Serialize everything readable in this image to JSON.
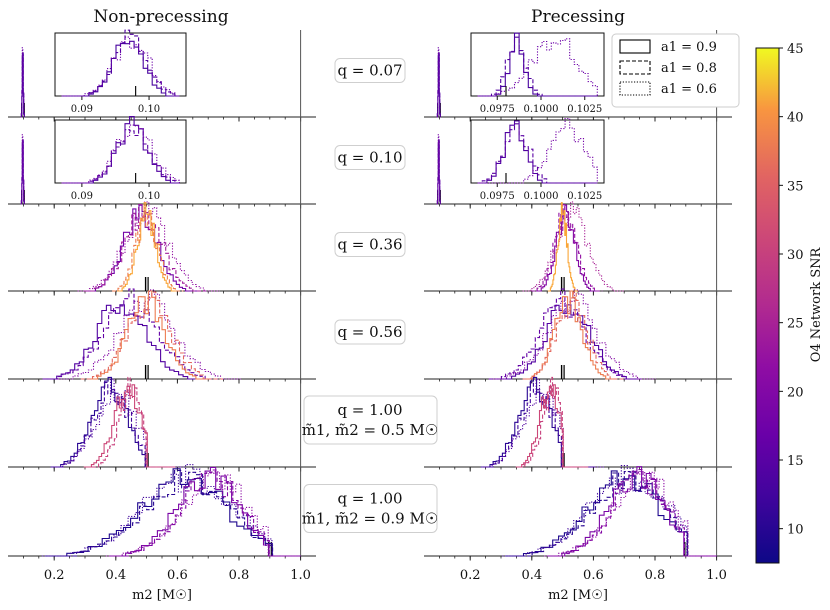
{
  "chart_data": {
    "type": "histogram-grid",
    "columns": [
      "Non-precessing",
      "Precessing"
    ],
    "xlabel": "m2 [M☉]",
    "xlim": [
      0.05,
      1.05
    ],
    "xticks": [
      "0.2",
      "0.4",
      "0.6",
      "0.8",
      "1.0"
    ],
    "rows": [
      {
        "label": "q = 0.07",
        "extra": "",
        "true_m2": 0.098,
        "inset": {
          "left_ticks": [
            "0.09",
            "0.10"
          ],
          "right_ticks": [
            "0.0975",
            "0.1000",
            "0.1025"
          ]
        }
      },
      {
        "label": "q = 0.10",
        "extra": "",
        "true_m2": 0.098,
        "inset": {
          "left_ticks": [
            "0.09",
            "0.10"
          ],
          "right_ticks": [
            "0.0975",
            "0.1000",
            "0.1025"
          ]
        }
      },
      {
        "label": "q = 0.36",
        "extra": "",
        "true_m2": 0.5
      },
      {
        "label": "q = 0.56",
        "extra": "",
        "true_m2": 0.5
      },
      {
        "label": "q = 1.00",
        "extra": "m̃1, m̃2 = 0.5 M☉",
        "true_m2": 0.5
      },
      {
        "label": "q = 1.00",
        "extra": "m̃1, m̃2 = 0.9 M☉",
        "true_m2": 0.9
      }
    ],
    "legend": {
      "placement": "top-right of precessing column",
      "entries": [
        {
          "label": "a1 = 0.9",
          "style": "solid"
        },
        {
          "label": "a1 = 0.8",
          "style": "dashed"
        },
        {
          "label": "a1 = 0.6",
          "style": "dotted"
        }
      ]
    },
    "colorbar": {
      "label": "O4 Network SNR",
      "min": 7.5,
      "max": 45,
      "ticks": [
        "10",
        "15",
        "20",
        "25",
        "30",
        "35",
        "40",
        "45"
      ],
      "colormap": "plasma"
    },
    "series": [
      {
        "row": 0,
        "panel": "left",
        "style": "solid",
        "snr": 13,
        "center": 0.097,
        "width": 0.0022
      },
      {
        "row": 0,
        "panel": "left",
        "style": "dashed",
        "snr": 14,
        "center": 0.0972,
        "width": 0.0024
      },
      {
        "row": 0,
        "panel": "left",
        "style": "dotted",
        "snr": 17,
        "center": 0.0974,
        "width": 0.0026
      },
      {
        "row": 0,
        "panel": "right",
        "style": "solid",
        "snr": 13,
        "center": 0.0986,
        "width": 0.0004
      },
      {
        "row": 0,
        "panel": "right",
        "style": "dashed",
        "snr": 14,
        "center": 0.0986,
        "width": 0.0005
      },
      {
        "row": 0,
        "panel": "right",
        "style": "dotted",
        "snr": 17,
        "center": 0.1008,
        "width": 0.0013
      },
      {
        "row": 1,
        "panel": "left",
        "style": "solid",
        "snr": 14,
        "center": 0.0975,
        "width": 0.0022
      },
      {
        "row": 1,
        "panel": "left",
        "style": "dashed",
        "snr": 15,
        "center": 0.0976,
        "width": 0.0024
      },
      {
        "row": 1,
        "panel": "left",
        "style": "dotted",
        "snr": 18,
        "center": 0.0978,
        "width": 0.0026
      },
      {
        "row": 1,
        "panel": "right",
        "style": "solid",
        "snr": 14,
        "center": 0.0985,
        "width": 0.0006
      },
      {
        "row": 1,
        "panel": "right",
        "style": "dashed",
        "snr": 15,
        "center": 0.0986,
        "width": 0.0007
      },
      {
        "row": 1,
        "panel": "right",
        "style": "dotted",
        "snr": 18,
        "center": 0.1015,
        "width": 0.001
      },
      {
        "row": 2,
        "panel": "left",
        "style": "solid",
        "snr": 18,
        "center": 0.48,
        "width": 0.055
      },
      {
        "row": 2,
        "panel": "left",
        "style": "dashed",
        "snr": 24,
        "center": 0.49,
        "width": 0.06
      },
      {
        "row": 2,
        "panel": "left",
        "style": "dotted",
        "snr": 22,
        "center": 0.5,
        "width": 0.07
      },
      {
        "row": 2,
        "panel": "left",
        "style": "solid",
        "snr": 42,
        "center": 0.5,
        "width": 0.03
      },
      {
        "row": 2,
        "panel": "left",
        "style": "dashed",
        "snr": 38,
        "center": 0.5,
        "width": 0.035
      },
      {
        "row": 2,
        "panel": "right",
        "style": "solid",
        "snr": 20,
        "center": 0.51,
        "width": 0.03
      },
      {
        "row": 2,
        "panel": "right",
        "style": "dashed",
        "snr": 22,
        "center": 0.51,
        "width": 0.035
      },
      {
        "row": 2,
        "panel": "right",
        "style": "dotted",
        "snr": 25,
        "center": 0.53,
        "width": 0.05
      },
      {
        "row": 2,
        "panel": "right",
        "style": "solid",
        "snr": 42,
        "center": 0.5,
        "width": 0.015
      },
      {
        "row": 3,
        "panel": "left",
        "style": "solid",
        "snr": 14,
        "center": 0.42,
        "width": 0.08
      },
      {
        "row": 3,
        "panel": "left",
        "style": "dashed",
        "snr": 16,
        "center": 0.45,
        "width": 0.09
      },
      {
        "row": 3,
        "panel": "left",
        "style": "dotted",
        "snr": 20,
        "center": 0.5,
        "width": 0.09
      },
      {
        "row": 3,
        "panel": "left",
        "style": "solid",
        "snr": 38,
        "center": 0.5,
        "width": 0.06
      },
      {
        "row": 3,
        "panel": "left",
        "style": "dashed",
        "snr": 36,
        "center": 0.51,
        "width": 0.07
      },
      {
        "row": 3,
        "panel": "right",
        "style": "solid",
        "snr": 14,
        "center": 0.52,
        "width": 0.07
      },
      {
        "row": 3,
        "panel": "right",
        "style": "dashed",
        "snr": 16,
        "center": 0.5,
        "width": 0.075
      },
      {
        "row": 3,
        "panel": "right",
        "style": "dotted",
        "snr": 20,
        "center": 0.53,
        "width": 0.08
      },
      {
        "row": 3,
        "panel": "right",
        "style": "solid",
        "snr": 38,
        "center": 0.52,
        "width": 0.045
      },
      {
        "row": 3,
        "panel": "right",
        "style": "dashed",
        "snr": 36,
        "center": 0.53,
        "width": 0.05
      },
      {
        "row": 4,
        "panel": "left",
        "style": "solid",
        "snr": 10,
        "center": 0.38,
        "width": 0.06
      },
      {
        "row": 4,
        "panel": "left",
        "style": "dashed",
        "snr": 12,
        "center": 0.39,
        "width": 0.06
      },
      {
        "row": 4,
        "panel": "left",
        "style": "dotted",
        "snr": 14,
        "center": 0.4,
        "width": 0.065
      },
      {
        "row": 4,
        "panel": "left",
        "style": "solid",
        "snr": 31,
        "center": 0.44,
        "width": 0.045
      },
      {
        "row": 4,
        "panel": "left",
        "style": "dashed",
        "snr": 30,
        "center": 0.45,
        "width": 0.04
      },
      {
        "row": 4,
        "panel": "right",
        "style": "solid",
        "snr": 10,
        "center": 0.41,
        "width": 0.055
      },
      {
        "row": 4,
        "panel": "right",
        "style": "dashed",
        "snr": 12,
        "center": 0.42,
        "width": 0.055
      },
      {
        "row": 4,
        "panel": "right",
        "style": "dotted",
        "snr": 14,
        "center": 0.43,
        "width": 0.06
      },
      {
        "row": 4,
        "panel": "right",
        "style": "solid",
        "snr": 31,
        "center": 0.46,
        "width": 0.035
      },
      {
        "row": 4,
        "panel": "right",
        "style": "dashed",
        "snr": 30,
        "center": 0.47,
        "width": 0.035
      },
      {
        "row": 5,
        "panel": "left",
        "style": "solid",
        "snr": 9,
        "center": 0.62,
        "width": 0.14
      },
      {
        "row": 5,
        "panel": "left",
        "style": "dashed",
        "snr": 10,
        "center": 0.63,
        "width": 0.14
      },
      {
        "row": 5,
        "panel": "left",
        "style": "dotted",
        "snr": 12,
        "center": 0.64,
        "width": 0.15
      },
      {
        "row": 5,
        "panel": "left",
        "style": "solid",
        "snr": 19,
        "center": 0.7,
        "width": 0.1
      },
      {
        "row": 5,
        "panel": "left",
        "style": "dashed",
        "snr": 20,
        "center": 0.71,
        "width": 0.1
      },
      {
        "row": 5,
        "panel": "left",
        "style": "dotted",
        "snr": 21,
        "center": 0.72,
        "width": 0.11
      },
      {
        "row": 5,
        "panel": "right",
        "style": "solid",
        "snr": 9,
        "center": 0.7,
        "width": 0.12
      },
      {
        "row": 5,
        "panel": "right",
        "style": "dashed",
        "snr": 10,
        "center": 0.71,
        "width": 0.12
      },
      {
        "row": 5,
        "panel": "right",
        "style": "dotted",
        "snr": 12,
        "center": 0.72,
        "width": 0.13
      },
      {
        "row": 5,
        "panel": "right",
        "style": "solid",
        "snr": 19,
        "center": 0.74,
        "width": 0.09
      },
      {
        "row": 5,
        "panel": "right",
        "style": "dashed",
        "snr": 20,
        "center": 0.75,
        "width": 0.09
      },
      {
        "row": 5,
        "panel": "right",
        "style": "dotted",
        "snr": 21,
        "center": 0.76,
        "width": 0.1
      }
    ]
  }
}
